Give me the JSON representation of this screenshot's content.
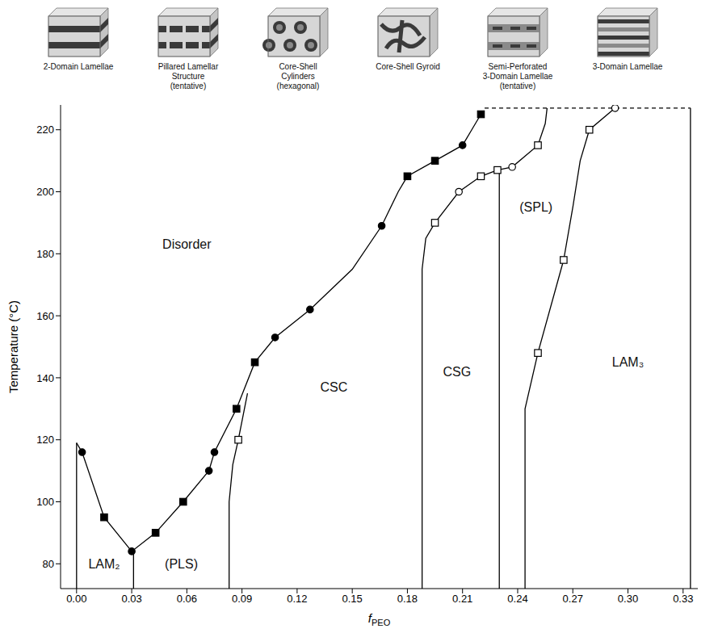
{
  "chart_data": {
    "type": "scatter",
    "xlabel": "f",
    "xlabel_subscript": "PEO",
    "ylabel": "Temperature (°C)",
    "xlim": [
      -0.0087,
      0.338
    ],
    "ylim": [
      72,
      228
    ],
    "xticks": [
      {
        "value": 0,
        "label": "0.00"
      },
      0.03,
      0.06,
      0.09,
      0.12,
      0.15,
      0.18,
      0.21,
      0.24,
      0.27,
      {
        "value": 0.3,
        "label": "0.30"
      },
      0.33
    ],
    "yticks": [
      80,
      100,
      120,
      140,
      160,
      180,
      200,
      220
    ],
    "structures": [
      "2-Domain Lamellae",
      "Pillared Lamellar Structure (tentative)",
      "Core-Shell Cylinders (hexagonal)",
      "Core-Shell Gyroid",
      "Semi-Perforated 3-Domain Lamellae (tentative)",
      "3-Domain Lamellae"
    ],
    "annotations": [
      {
        "text": "Disorder",
        "x": 0.06,
        "y": 183
      },
      {
        "text": "LAM₂",
        "x": 0.015,
        "y": 80
      },
      {
        "text": "(PLS)",
        "x": 0.057,
        "y": 80
      },
      {
        "text": "CSC",
        "x": 0.14,
        "y": 137
      },
      {
        "text": "CSG",
        "x": 0.207,
        "y": 142
      },
      {
        "text": "(SPL)",
        "x": 0.25,
        "y": 195
      },
      {
        "text": "LAM₃",
        "x": 0.3,
        "y": 145
      }
    ],
    "series": [
      {
        "type": "line",
        "color": "#000000",
        "line_style": "solid",
        "x": [
          0.0,
          0.003,
          0.015,
          0.03,
          0.043,
          0.058,
          0.072,
          0.075,
          0.087,
          0.097,
          0.108,
          0.127,
          0.15,
          0.166,
          0.175,
          0.18,
          0.195,
          0.21,
          0.215,
          0.22
        ],
        "values": [
          119,
          116,
          95,
          84,
          90,
          100,
          110,
          116,
          130,
          145,
          153,
          162,
          175,
          189,
          200,
          205,
          210,
          215,
          220,
          225
        ]
      },
      {
        "type": "line",
        "color": "#000000",
        "line_style": "solid",
        "x": [
          0.0,
          0.0
        ],
        "values": [
          72,
          119
        ]
      },
      {
        "type": "line",
        "color": "#000000",
        "line_style": "solid",
        "x": [
          0.031,
          0.031
        ],
        "values": [
          72,
          84
        ]
      },
      {
        "type": "line",
        "color": "#000000",
        "line_style": "solid",
        "x": [
          0.083,
          0.083,
          0.085,
          0.088,
          0.093
        ],
        "values": [
          72,
          100,
          112,
          120,
          135
        ]
      },
      {
        "type": "line",
        "color": "#000000",
        "line_style": "solid",
        "x": [
          0.188,
          0.188,
          0.19,
          0.195,
          0.208,
          0.22,
          0.229,
          0.237,
          0.251,
          0.255,
          0.256
        ],
        "values": [
          72,
          175,
          185,
          190,
          200,
          205,
          207,
          208,
          215,
          222,
          227
        ]
      },
      {
        "type": "line",
        "color": "#000000",
        "line_style": "solid",
        "x": [
          0.23,
          0.23
        ],
        "values": [
          72,
          207
        ]
      },
      {
        "type": "line",
        "color": "#000000",
        "line_style": "solid",
        "x": [
          0.244,
          0.244,
          0.251,
          0.265,
          0.27,
          0.274,
          0.279,
          0.293
        ],
        "values": [
          72,
          130,
          148,
          178,
          195,
          210,
          220,
          227
        ]
      },
      {
        "type": "line",
        "color": "#000000",
        "line_style": "solid",
        "x": [
          0.334,
          0.334
        ],
        "values": [
          72,
          227
        ]
      },
      {
        "type": "line",
        "color": "#000000",
        "line_style": "dashed",
        "x": [
          0.222,
          0.334
        ],
        "values": [
          227,
          227
        ]
      },
      {
        "type": "scatter",
        "color": "#000000",
        "marker": "circle",
        "x": [
          0.003,
          0.03,
          0.072,
          0.075,
          0.108,
          0.127,
          0.166,
          0.21
        ],
        "values": [
          116,
          84,
          110,
          116,
          153,
          162,
          189,
          215
        ]
      },
      {
        "type": "scatter",
        "color": "#000000",
        "marker": "square",
        "x": [
          0.015,
          0.043,
          0.058,
          0.087,
          0.097,
          0.18,
          0.195,
          0.22
        ],
        "values": [
          95,
          90,
          100,
          130,
          145,
          205,
          210,
          225
        ]
      },
      {
        "type": "scatter",
        "color": "#000000",
        "marker": "open_square",
        "x": [
          0.088,
          0.195,
          0.22,
          0.229,
          0.251,
          0.251,
          0.265,
          0.279
        ],
        "values": [
          120,
          190,
          205,
          207,
          215,
          148,
          178,
          220
        ]
      },
      {
        "type": "scatter",
        "color": "#000000",
        "marker": "open_circle",
        "x": [
          0.208,
          0.237,
          0.293
        ],
        "values": [
          200,
          208,
          227
        ]
      }
    ]
  }
}
